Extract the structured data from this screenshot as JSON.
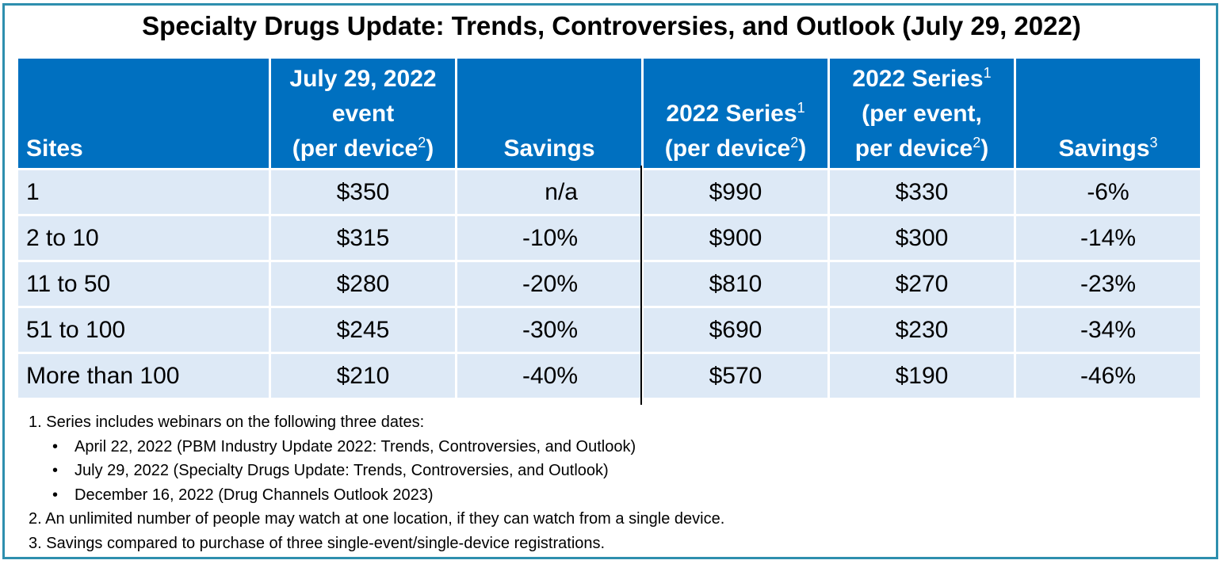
{
  "title": "Specialty Drugs Update: Trends, Controversies, and Outlook (July 29, 2022)",
  "columns": [
    {
      "lines": [],
      "last": "Sites",
      "sup": ""
    },
    {
      "lines": [
        "July 29, 2022",
        "event"
      ],
      "last": "(per device",
      "sup": "2",
      "after": ")"
    },
    {
      "lines": [],
      "last": "Savings",
      "sup": ""
    },
    {
      "lines": [],
      "pre": "2022 Series",
      "pre_sup": "1",
      "last": "(per device",
      "sup": "2",
      "after": ")"
    },
    {
      "lines": [],
      "pre": "2022 Series",
      "pre_sup": "1",
      "mid": "(per event,",
      "last": "per device",
      "sup": "2",
      "after": ")"
    },
    {
      "lines": [],
      "last": "Savings",
      "sup": "3"
    }
  ],
  "rows": [
    {
      "sites": "1",
      "event_price": "$350",
      "savings": "n/a",
      "series_price": "$990",
      "series_per_event": "$330",
      "series_savings": "-6%"
    },
    {
      "sites": "2 to 10",
      "event_price": "$315",
      "savings": "-10%",
      "series_price": "$900",
      "series_per_event": "$300",
      "series_savings": "-14%"
    },
    {
      "sites": "11 to 50",
      "event_price": "$280",
      "savings": "-20%",
      "series_price": "$810",
      "series_per_event": "$270",
      "series_savings": "-23%"
    },
    {
      "sites": "51 to 100",
      "event_price": "$245",
      "savings": "-30%",
      "series_price": "$690",
      "series_per_event": "$230",
      "series_savings": "-34%"
    },
    {
      "sites": "More than 100",
      "event_price": "$210",
      "savings": "-40%",
      "series_price": "$570",
      "series_per_event": "$190",
      "series_savings": "-46%"
    }
  ],
  "notes": {
    "n1": "1. Series includes webinars on the following three dates:",
    "bullets": [
      "April 22, 2022 (PBM Industry Update 2022: Trends, Controversies, and Outlook)",
      "July 29, 2022 (Specialty Drugs Update: Trends, Controversies, and Outlook)",
      "December 16, 2022 (Drug Channels Outlook 2023)"
    ],
    "n2": "2. An unlimited number of people may watch at one location, if they can watch from a single device.",
    "n3": "3. Savings compared to purchase of three single-event/single-device registrations."
  }
}
